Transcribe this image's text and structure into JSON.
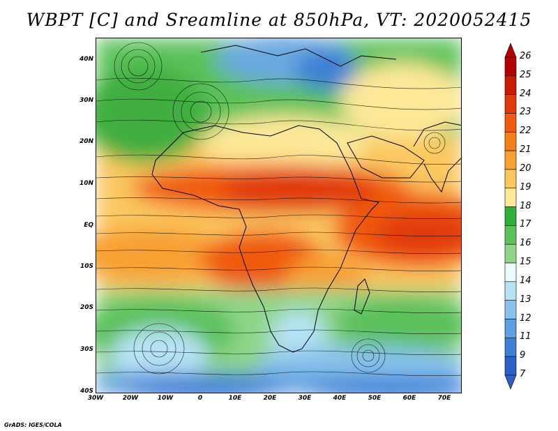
{
  "title": "WBPT [C] and Sreamline at 850hPa, VT: 2020052415",
  "credit": "GrADS: IGES/COLA",
  "lat_labels": [
    "40N",
    "30N",
    "20N",
    "10N",
    "EQ",
    "10S",
    "20S",
    "30S",
    "40S"
  ],
  "lon_labels": [
    "30W",
    "20W",
    "10W",
    "0",
    "10E",
    "20E",
    "30E",
    "40E",
    "50E",
    "60E",
    "70E"
  ],
  "colorbar": {
    "labels": [
      "26",
      "25",
      "24",
      "23",
      "22",
      "21",
      "20",
      "19",
      "18",
      "17",
      "16",
      "15",
      "14",
      "13",
      "12",
      "11",
      "9",
      "7"
    ],
    "colors": [
      "#b30000",
      "#cc1a00",
      "#e03a0a",
      "#f05a10",
      "#f5801a",
      "#f8a030",
      "#fbc860",
      "#fde898",
      "#2fae3a",
      "#5cc15a",
      "#8fd68a",
      "#eafcfe",
      "#b7e3f5",
      "#8ac2ec",
      "#5fa0e0",
      "#3e7fd6",
      "#2a60c8"
    ]
  }
}
